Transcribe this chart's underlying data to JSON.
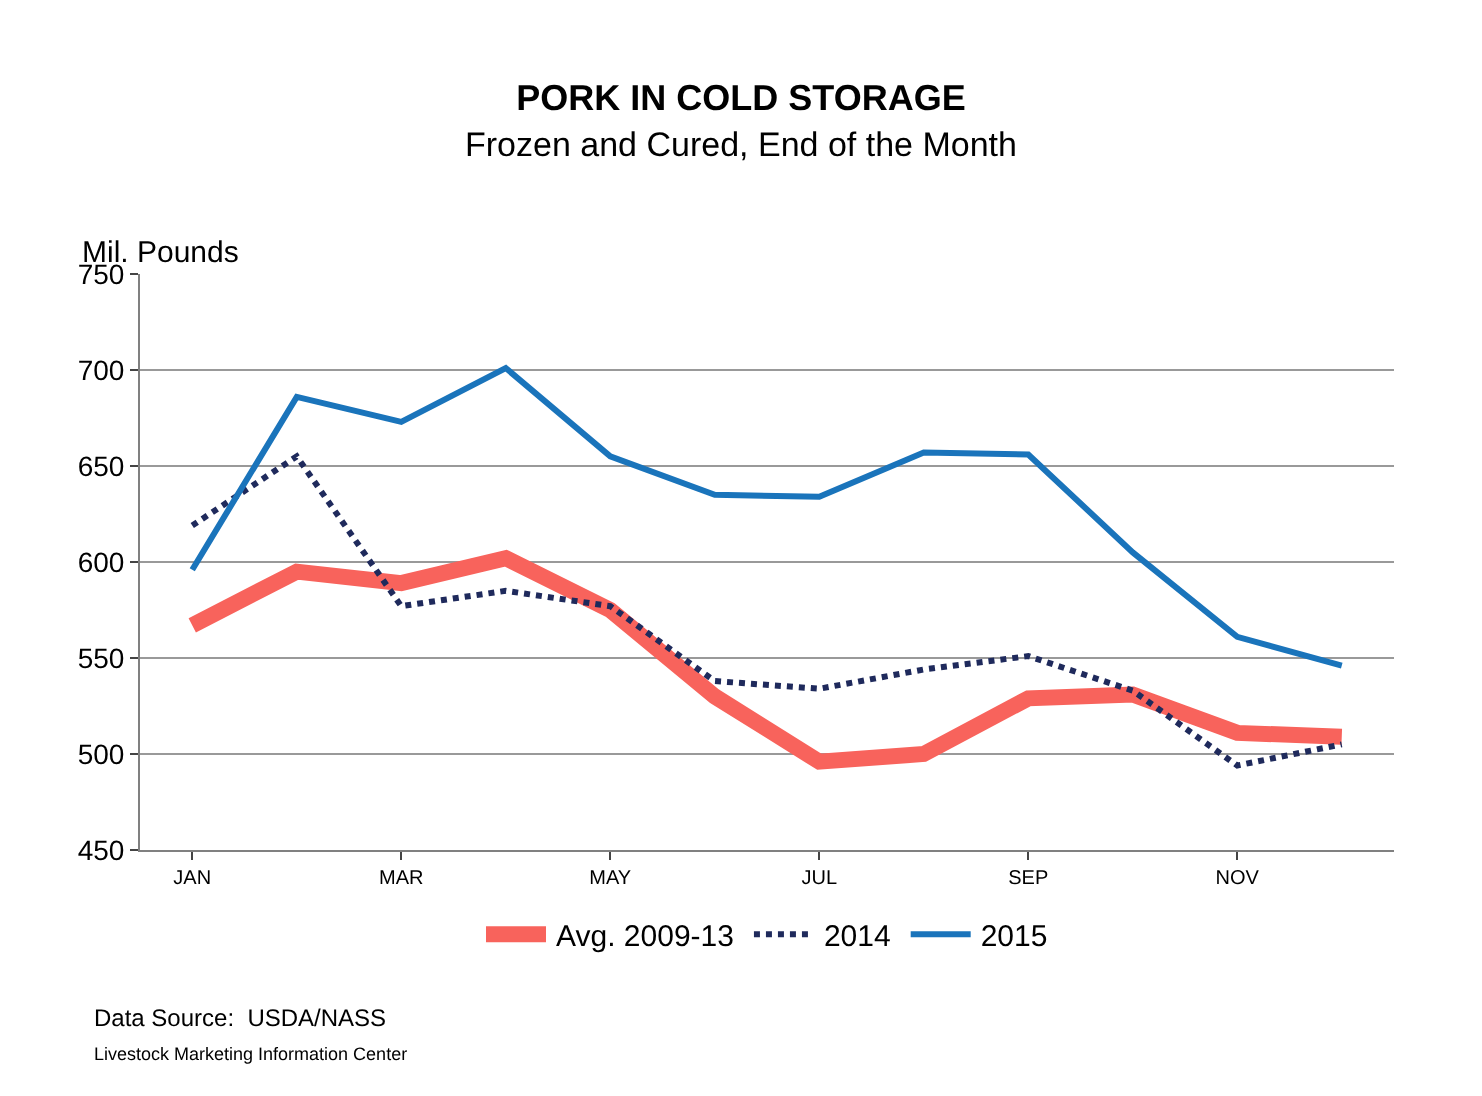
{
  "chart_data": {
    "type": "line",
    "title": "PORK IN COLD STORAGE",
    "subtitle": "Frozen and Cured, End of the Month",
    "ylabel": "Mil. Pounds",
    "categories": [
      "JAN",
      null,
      "MAR",
      null,
      "MAY",
      null,
      "JUL",
      null,
      "SEP",
      null,
      "NOV",
      null
    ],
    "series": [
      {
        "name": "Avg. 2009-13",
        "color": "#f8635c",
        "line_style": "solid",
        "values": [
          567,
          595,
          589,
          602,
          575,
          530,
          496,
          500,
          529,
          531,
          511,
          509
        ]
      },
      {
        "name": "2014",
        "color": "#1f2a5c",
        "line_style": "dotted",
        "values": [
          619,
          655,
          577,
          585,
          577,
          538,
          534,
          544,
          551,
          533,
          494,
          505
        ]
      },
      {
        "name": "2015",
        "color": "#1a74bb",
        "line_style": "solid",
        "values": [
          596,
          686,
          673,
          701,
          655,
          635,
          634,
          657,
          656,
          605,
          561,
          546
        ]
      }
    ],
    "ylim": [
      450,
      750
    ],
    "yticks": [
      450,
      500,
      550,
      600,
      650,
      700,
      750
    ],
    "grid": "y",
    "legend": "bottom",
    "marker": "none",
    "annotations": [
      "Data Source:  USDA/NASS",
      "Livestock Marketing Information Center"
    ]
  }
}
